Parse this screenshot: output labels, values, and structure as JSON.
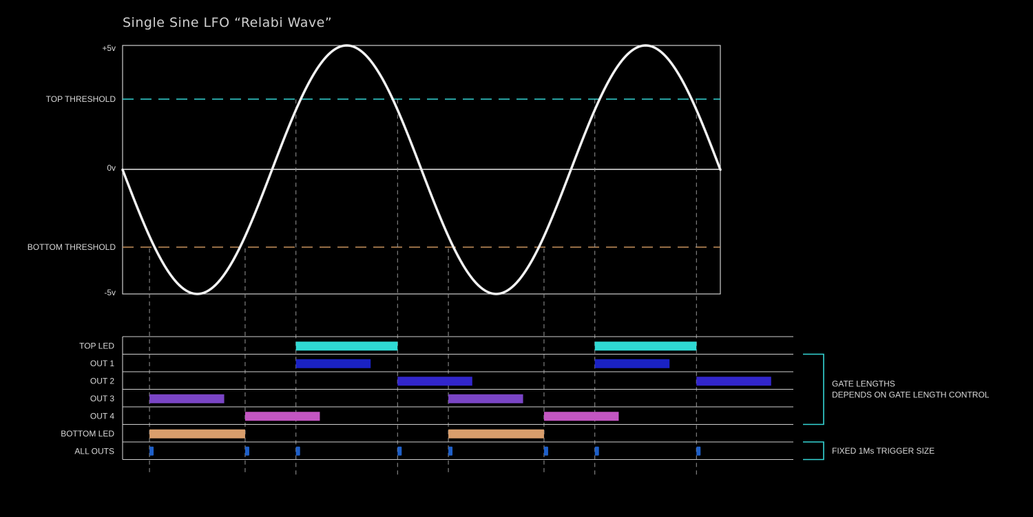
{
  "title": "Single Sine LFO “Relabi Wave”",
  "wave": {
    "axis_labels": {
      "top": "+5v",
      "zero": "0v",
      "bottom": "-5v"
    },
    "range": [
      -5,
      5
    ],
    "cycles": 2,
    "start_direction": "down",
    "top_threshold": {
      "label": "TOP THRESHOLD",
      "value": 2.83,
      "color": "#35d6d6"
    },
    "bottom_threshold": {
      "label": "BOTTOM THRESHOLD",
      "value": -3.17,
      "color": "#c8925e"
    },
    "wave_color": "#f2f2f2",
    "crossing_phases": [
      0.045,
      0.205,
      0.29,
      0.46,
      0.545,
      0.705,
      0.79,
      0.96
    ]
  },
  "rows": [
    {
      "label": "TOP LED",
      "color": "#2fd9d4",
      "gates": [
        [
          0.29,
          0.46
        ],
        [
          0.79,
          0.96
        ]
      ]
    },
    {
      "label": "OUT 1",
      "color": "#1a22c4",
      "gates": [
        [
          0.29,
          0.415
        ],
        [
          0.79,
          0.915
        ]
      ]
    },
    {
      "label": "OUT 2",
      "color": "#3226cc",
      "gates": [
        [
          0.46,
          0.585
        ],
        [
          0.96,
          1.085
        ]
      ]
    },
    {
      "label": "OUT 3",
      "color": "#7a45c6",
      "gates": [
        [
          0.045,
          0.17
        ],
        [
          0.545,
          0.67
        ]
      ]
    },
    {
      "label": "OUT 4",
      "color": "#c356c2",
      "gates": [
        [
          0.205,
          0.33
        ],
        [
          0.705,
          0.83
        ]
      ]
    },
    {
      "label": "BOTTOM LED",
      "color": "#d99e6c",
      "gates": [
        [
          0.045,
          0.205
        ],
        [
          0.545,
          0.705
        ]
      ]
    },
    {
      "label": "ALL OUTS",
      "color": "#1e5fc8",
      "triggers": [
        0.045,
        0.205,
        0.29,
        0.46,
        0.545,
        0.705,
        0.79,
        0.96
      ]
    }
  ],
  "annotations": [
    {
      "lines": [
        "GATE LENGTHS",
        "DEPENDS ON GATE LENGTH CONTROL"
      ],
      "from_row": 1,
      "to_row": 4,
      "color": "#35d6d6"
    },
    {
      "lines": [
        "FIXED 1Ms TRIGGER SIZE"
      ],
      "from_row": 6,
      "to_row": 6,
      "color": "#35d6d6"
    }
  ]
}
